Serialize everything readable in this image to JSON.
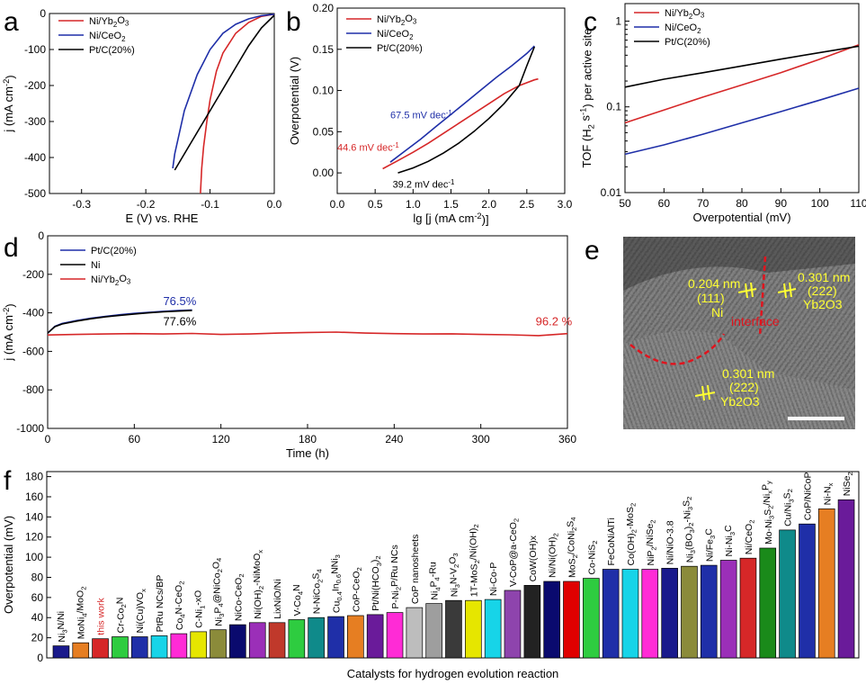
{
  "panels": {
    "a": "a",
    "b": "b",
    "c": "c",
    "d": "d",
    "e": "e",
    "f": "f"
  },
  "colors": {
    "red": "#d62728",
    "blue": "#1f2fa8",
    "black": "#000000",
    "tem_label": "#ffff33",
    "tem_interface": "#e0141e"
  },
  "chart_data": [
    {
      "id": "a",
      "type": "line",
      "xlabel": "E (V) vs. RHE",
      "ylabel": "j (mA cm-2)",
      "xlim": [
        -0.35,
        0.0
      ],
      "ylim": [
        -500,
        0
      ],
      "xticks": [
        -0.3,
        -0.2,
        -0.1,
        0.0
      ],
      "xtick_labels": [
        "-0.3",
        "-0.2",
        "-0.1",
        "0.0"
      ],
      "yticks": [
        -500,
        -400,
        -300,
        -200,
        -100,
        0
      ],
      "ytick_labels": [
        "-500",
        "-400",
        "-300",
        "-200",
        "-100",
        "0"
      ],
      "legend": "top-left",
      "series": [
        {
          "name": "Ni/Yb2O3",
          "color": "#d62728",
          "x": [
            0.0,
            -0.02,
            -0.04,
            -0.06,
            -0.08,
            -0.09,
            -0.1,
            -0.105,
            -0.11,
            -0.113,
            -0.115
          ],
          "y": [
            -2,
            -8,
            -25,
            -55,
            -110,
            -160,
            -240,
            -300,
            -370,
            -430,
            -500
          ]
        },
        {
          "name": "Ni/CeO2",
          "color": "#1f2fa8",
          "x": [
            0.0,
            -0.02,
            -0.04,
            -0.06,
            -0.08,
            -0.1,
            -0.12,
            -0.14,
            -0.155,
            -0.158
          ],
          "y": [
            -2,
            -6,
            -15,
            -30,
            -55,
            -100,
            -170,
            -270,
            -390,
            -430
          ]
        },
        {
          "name": "Pt/C(20%)",
          "color": "#000000",
          "x": [
            0.0,
            -0.02,
            -0.04,
            -0.06,
            -0.08,
            -0.1,
            -0.12,
            -0.14,
            -0.155
          ],
          "y": [
            -5,
            -40,
            -90,
            -150,
            -210,
            -270,
            -330,
            -390,
            -435
          ]
        }
      ]
    },
    {
      "id": "b",
      "type": "line",
      "xlabel": "lg [j (mA cm-2)]",
      "ylabel": "Overpotential (V)",
      "xlim": [
        0.0,
        3.0
      ],
      "ylim": [
        -0.025,
        0.2
      ],
      "xticks": [
        0.0,
        0.5,
        1.0,
        1.5,
        2.0,
        2.5,
        3.0
      ],
      "xtick_labels": [
        "0.0",
        "0.5",
        "1.0",
        "1.5",
        "2.0",
        "2.5",
        "3.0"
      ],
      "yticks": [
        0.0,
        0.05,
        0.1,
        0.15,
        0.2
      ],
      "ytick_labels": [
        "0.00",
        "0.05",
        "0.10",
        "0.15",
        "0.20"
      ],
      "legend": "top-left",
      "annotations": [
        "67.5 mV dec-1",
        "44.6 mV dec-1",
        "39.2 mV dec-1"
      ],
      "series": [
        {
          "name": "Ni/Yb2O3",
          "color": "#d62728",
          "x": [
            0.6,
            0.8,
            1.0,
            1.2,
            1.4,
            1.6,
            1.8,
            2.0,
            2.2,
            2.4,
            2.6,
            2.65
          ],
          "y": [
            0.005,
            0.015,
            0.025,
            0.036,
            0.048,
            0.06,
            0.072,
            0.084,
            0.096,
            0.106,
            0.113,
            0.114
          ]
        },
        {
          "name": "Ni/CeO2",
          "color": "#1f2fa8",
          "x": [
            0.7,
            0.9,
            1.1,
            1.3,
            1.5,
            1.7,
            1.9,
            2.1,
            2.3,
            2.5,
            2.6
          ],
          "y": [
            0.013,
            0.027,
            0.041,
            0.056,
            0.071,
            0.086,
            0.101,
            0.116,
            0.13,
            0.145,
            0.154
          ]
        },
        {
          "name": "Pt/C(20%)",
          "color": "#000000",
          "x": [
            0.8,
            1.0,
            1.2,
            1.4,
            1.6,
            1.8,
            2.0,
            2.2,
            2.4,
            2.5,
            2.6
          ],
          "y": [
            0.0,
            0.006,
            0.014,
            0.024,
            0.036,
            0.05,
            0.066,
            0.084,
            0.106,
            0.13,
            0.153
          ]
        }
      ]
    },
    {
      "id": "c",
      "type": "line",
      "yscale": "log",
      "xlabel": "Overpotential (mV)",
      "ylabel": "TOF (H2 s-1) per active site",
      "xlim": [
        50,
        110
      ],
      "ylim": [
        0.01,
        1.6
      ],
      "xticks": [
        50,
        60,
        70,
        80,
        90,
        100,
        110
      ],
      "xtick_labels": [
        "50",
        "60",
        "70",
        "80",
        "90",
        "100",
        "110"
      ],
      "yticks": [
        0.01,
        0.1,
        1
      ],
      "ytick_labels": [
        "0.01",
        "0.1",
        "1"
      ],
      "legend": "top-left",
      "series": [
        {
          "name": "Ni/Yb2O3",
          "color": "#d62728",
          "x": [
            50,
            60,
            70,
            80,
            90,
            100,
            110
          ],
          "y": [
            0.065,
            0.092,
            0.13,
            0.18,
            0.25,
            0.36,
            0.53
          ]
        },
        {
          "name": "Ni/CeO2",
          "color": "#1f2fa8",
          "x": [
            50,
            60,
            70,
            80,
            90,
            100,
            110
          ],
          "y": [
            0.028,
            0.036,
            0.048,
            0.065,
            0.088,
            0.12,
            0.165
          ]
        },
        {
          "name": "Pt/C(20%)",
          "color": "#000000",
          "x": [
            50,
            60,
            70,
            80,
            90,
            100,
            110
          ],
          "y": [
            0.17,
            0.21,
            0.25,
            0.3,
            0.36,
            0.43,
            0.51
          ]
        }
      ]
    },
    {
      "id": "d",
      "type": "line",
      "xlabel": "Time (h)",
      "ylabel": "j (mA cm-2)",
      "xlim": [
        0,
        360
      ],
      "ylim": [
        -1000,
        0
      ],
      "xticks": [
        0,
        60,
        120,
        180,
        240,
        300,
        360
      ],
      "xtick_labels": [
        "0",
        "60",
        "120",
        "180",
        "240",
        "300",
        "360"
      ],
      "yticks": [
        -1000,
        -800,
        -600,
        -400,
        -200,
        0
      ],
      "ytick_labels": [
        "-1000",
        "-800",
        "-600",
        "-400",
        "-200",
        "0"
      ],
      "legend": "top-left",
      "annotations": [
        "76.5%",
        "77.6%",
        "96.2 %"
      ],
      "series": [
        {
          "name": "Pt/C(20%)",
          "color": "#1f2fa8",
          "x": [
            0,
            5,
            10,
            20,
            30,
            40,
            50,
            60,
            70,
            80,
            90,
            100
          ],
          "y": [
            -505,
            -470,
            -455,
            -440,
            -428,
            -418,
            -410,
            -403,
            -397,
            -392,
            -388,
            -385
          ]
        },
        {
          "name": "Ni",
          "color": "#000000",
          "x": [
            0,
            5,
            10,
            20,
            30,
            40,
            50,
            60,
            70,
            80,
            90,
            100
          ],
          "y": [
            -505,
            -472,
            -458,
            -443,
            -431,
            -421,
            -413,
            -406,
            -400,
            -395,
            -391,
            -388
          ]
        },
        {
          "name": "Ni/Yb2O3",
          "color": "#d62728",
          "x": [
            0,
            20,
            40,
            60,
            80,
            100,
            120,
            140,
            160,
            180,
            200,
            220,
            240,
            260,
            280,
            300,
            320,
            340,
            360
          ],
          "y": [
            -515,
            -512,
            -510,
            -508,
            -510,
            -507,
            -512,
            -510,
            -505,
            -502,
            -500,
            -505,
            -508,
            -510,
            -509,
            -512,
            -514,
            -518,
            -508
          ]
        }
      ]
    },
    {
      "id": "f",
      "type": "bar",
      "xlabel": "Catalysts for hydrogen evolution reaction",
      "ylabel": "Overpotential (mV)",
      "ylim": [
        0,
        185
      ],
      "yticks": [
        0,
        20,
        40,
        60,
        80,
        100,
        120,
        140,
        160,
        180
      ],
      "ytick_labels": [
        "0",
        "20",
        "40",
        "60",
        "80",
        "100",
        "120",
        "140",
        "160",
        "180"
      ],
      "categories": [
        "Ni3N/Ni",
        "MoNi4/MoO2",
        "this work",
        "Cr-Co2N",
        "Ni(Cu)VOx",
        "PtRu NCs/BP",
        "Co4N-CeO2",
        "C-Ni1-xO",
        "Ni3P4@NiCo2O4",
        "NiCo-CeO2",
        "Ni(OH)2-NiMoOx",
        "LixNiO/Ni",
        "V-Co4N",
        "N-NiCo2S4",
        "Cu0.4In0.6NNi3",
        "CoP-CeO2",
        "Pt/Ni(HCO3)2",
        "P-Ni2P/Ru NCs",
        "CoP nanosheets",
        "Ni4P4-Ru",
        "Ni3N-V2O3",
        "1T-MoS2/Ni(OH)2",
        "Ni-Co-P",
        "V-CoP@a-CeO2",
        "CoW(OH)x",
        "Ni/Ni(OH)2",
        "MoS2/CoNi2S4",
        "Co-NiS2",
        "FeCoNiAlTi",
        "Co(OH)2-MoS2",
        "NiP2/NiSe2",
        "Ni/NiO-3.8",
        "Ni3(BO3)2-Ni3S2",
        "Ni/Fe3C",
        "Ni-Ni3C",
        "Ni/CeO2",
        "Mo-Ni3S2/NixPy",
        "Cu/Ni3S2",
        "CoP/NiCoP",
        "Ni-Nx",
        "NiSe2"
      ],
      "values": [
        12,
        15,
        19,
        21,
        21,
        22,
        24,
        26,
        28,
        33,
        35,
        35,
        38,
        40,
        41,
        42,
        43,
        45,
        50,
        54,
        57,
        57,
        58,
        67,
        72,
        76,
        76,
        79,
        88,
        88,
        88,
        89,
        91,
        92,
        97,
        99,
        109,
        127,
        133,
        148,
        157
      ],
      "bar_colors": [
        "#1a1a8c",
        "#e67e22",
        "#d62728",
        "#2ecc40",
        "#1f2fa8",
        "#17d4e8",
        "#ff2bd6",
        "#e6e600",
        "#8b8b3a",
        "#0a0a6e",
        "#9b2fb8",
        "#c0392b",
        "#2ecc40",
        "#0f8a8a",
        "#1f2fa8",
        "#e67e22",
        "#6a1b9a",
        "#ff2bd6",
        "#bdbdbd",
        "#9e9e9e",
        "#3a3a3a",
        "#e6e600",
        "#17d4e8",
        "#8e44ad",
        "#222222",
        "#0a0a6e",
        "#e00000",
        "#2ecc40",
        "#1f2fa8",
        "#17d4e8",
        "#ff2bd6",
        "#1a1a8c",
        "#8b8b3a",
        "#1f2fa8",
        "#9b2fb8",
        "#d62728",
        "#1a8a1a",
        "#0f8a8a",
        "#1f2fa8",
        "#e67e22",
        "#6a1b9a"
      ],
      "label_colors": [
        "#000000",
        "#000000",
        "#d62728",
        "#000000",
        "#000000",
        "#000000",
        "#000000",
        "#000000",
        "#000000",
        "#000000",
        "#000000",
        "#000000",
        "#000000",
        "#000000",
        "#000000",
        "#000000",
        "#000000",
        "#000000",
        "#000000",
        "#000000",
        "#000000",
        "#000000",
        "#000000",
        "#000000",
        "#000000",
        "#000000",
        "#000000",
        "#000000",
        "#000000",
        "#000000",
        "#000000",
        "#000000",
        "#000000",
        "#000000",
        "#000000",
        "#000000",
        "#000000",
        "#000000",
        "#000000",
        "#000000",
        "#000000"
      ]
    }
  ],
  "tem": {
    "labels": [
      "0.204 nm",
      "(111)",
      "Ni",
      "0.301 nm",
      "(222)",
      "Yb2O3",
      "interface",
      "0.301 nm",
      "(222)",
      "Yb2O3"
    ]
  }
}
